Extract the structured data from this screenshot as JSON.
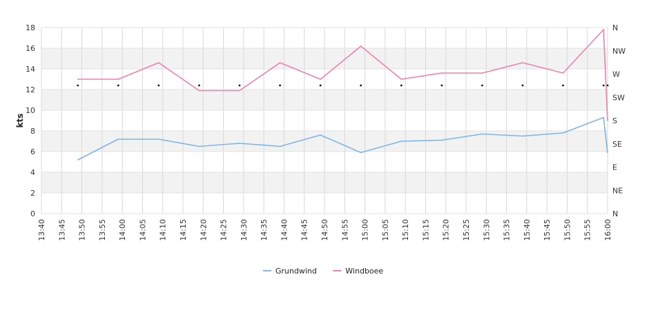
{
  "chart_data": {
    "type": "line",
    "ylabel": "kts",
    "ylim": [
      0,
      18
    ],
    "y_ticks": [
      "0",
      "2",
      "4",
      "6",
      "8",
      "10",
      "12",
      "14",
      "16",
      "18"
    ],
    "direction_ticks": [
      "N",
      "NE",
      "E",
      "SE",
      "S",
      "SW",
      "W",
      "NW",
      "N"
    ],
    "x_ticks": [
      "13:40",
      "13:45",
      "13:50",
      "13:55",
      "14:00",
      "14:05",
      "14:10",
      "14:15",
      "14:20",
      "14:25",
      "14:30",
      "14:35",
      "14:40",
      "14:45",
      "14:50",
      "14:55",
      "15:00",
      "15:05",
      "15:10",
      "15:15",
      "15:20",
      "15:25",
      "15:30",
      "15:35",
      "15:40",
      "15:45",
      "15:50",
      "15:55",
      "16:00"
    ],
    "x_range": [
      "13:40",
      "16:00"
    ],
    "x": [
      "13:49",
      "13:59",
      "14:09",
      "14:19",
      "14:29",
      "14:39",
      "14:49",
      "14:59",
      "15:09",
      "15:19",
      "15:29",
      "15:39",
      "15:49",
      "15:59",
      "16:00"
    ],
    "series": [
      {
        "name": "Grundwind",
        "color": "#7cb5ec",
        "values": [
          5.2,
          7.2,
          7.2,
          6.5,
          6.8,
          6.5,
          7.6,
          5.9,
          7.0,
          7.1,
          7.7,
          7.5,
          7.8,
          9.3,
          5.9
        ]
      },
      {
        "name": "Windboee",
        "color": "#f07eb0",
        "values": [
          13.0,
          13.0,
          14.6,
          11.9,
          11.9,
          14.6,
          13.0,
          16.2,
          13.0,
          13.6,
          13.6,
          14.6,
          13.6,
          17.8,
          9.0
        ]
      }
    ],
    "direction_markers": {
      "x": [
        "13:49",
        "13:59",
        "14:09",
        "14:19",
        "14:29",
        "14:39",
        "14:49",
        "14:59",
        "15:09",
        "15:19",
        "15:29",
        "15:39",
        "15:49",
        "15:59",
        "16:00"
      ],
      "value": 12.4
    },
    "band_color": "#f2f2f2",
    "grid": true,
    "legend": "bottom-center"
  }
}
